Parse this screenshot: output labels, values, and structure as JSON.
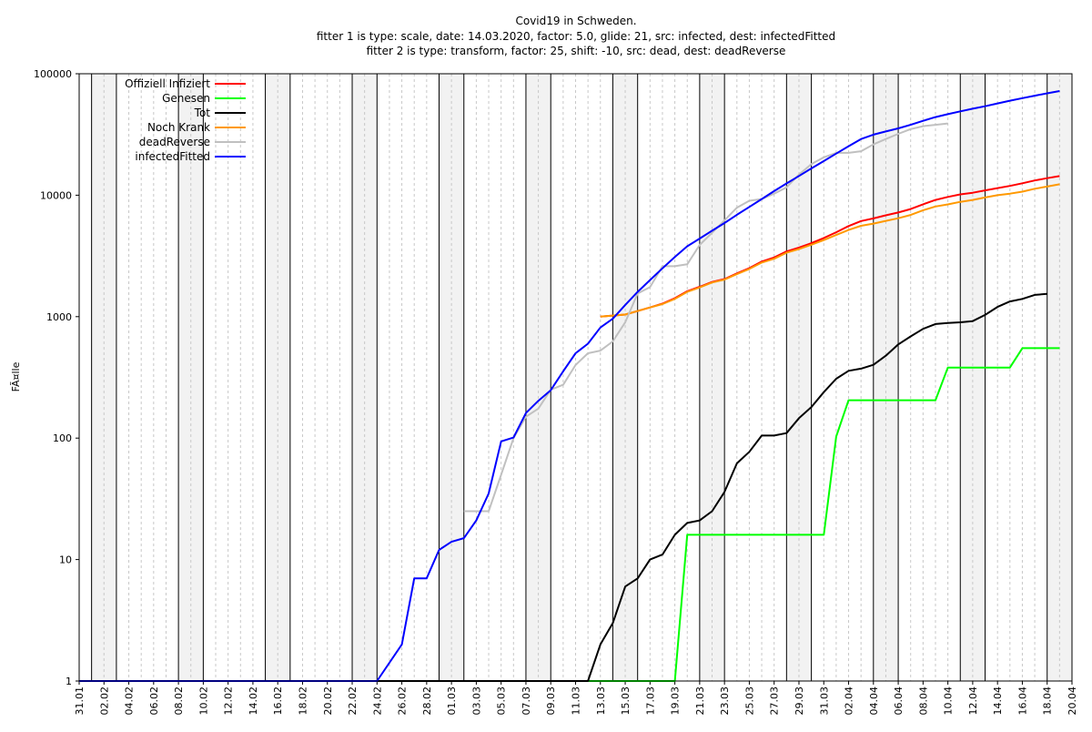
{
  "chart_data": {
    "type": "line",
    "title": "Covid19 in Schweden.",
    "subtitle_lines": [
      "fitter 1 is type: scale, date: 14.03.2020, factor: 5.0, glide: 21, src: infected, dest: infectedFitted",
      "fitter 2 is type: transform, factor: 25, shift: -10, src: dead, dest: deadReverse"
    ],
    "xlabel": "",
    "ylabel": "FÃ¤lle",
    "y_scale": "log",
    "ylim": [
      1,
      100000
    ],
    "y_ticks": [
      1,
      10,
      100,
      1000,
      10000,
      100000
    ],
    "x_range": [
      "2020-01-31",
      "2020-04-20"
    ],
    "x_tick_labels": [
      "31.01",
      "02.02",
      "04.02",
      "06.02",
      "08.02",
      "10.02",
      "12.02",
      "14.02",
      "16.02",
      "18.02",
      "20.02",
      "22.02",
      "24.02",
      "26.02",
      "28.02",
      "01.03",
      "03.03",
      "05.03",
      "07.03",
      "09.03",
      "11.03",
      "13.03",
      "15.03",
      "17.03",
      "19.03",
      "21.03",
      "23.03",
      "25.03",
      "27.03",
      "29.03",
      "31.03",
      "02.04",
      "04.04",
      "06.04",
      "08.04",
      "10.04",
      "12.04",
      "14.04",
      "16.04",
      "18.04",
      "20.04"
    ],
    "weekend_shading": true,
    "grid": "dashed vertical",
    "legend_position": "top-left",
    "series": [
      {
        "name": "Offiziell Infiziert",
        "color": "#ff0000",
        "points": [
          [
            "2020-03-13",
            1000
          ],
          [
            "2020-03-15",
            1040
          ],
          [
            "2020-03-17",
            1190
          ],
          [
            "2020-03-18",
            1280
          ],
          [
            "2020-03-19",
            1420
          ],
          [
            "2020-03-20",
            1620
          ],
          [
            "2020-03-21",
            1760
          ],
          [
            "2020-03-22",
            1930
          ],
          [
            "2020-03-23",
            2040
          ],
          [
            "2020-03-24",
            2270
          ],
          [
            "2020-03-25",
            2510
          ],
          [
            "2020-03-26",
            2840
          ],
          [
            "2020-03-27",
            3070
          ],
          [
            "2020-03-28",
            3440
          ],
          [
            "2020-03-29",
            3700
          ],
          [
            "2020-03-30",
            4030
          ],
          [
            "2020-03-31",
            4440
          ],
          [
            "2020-04-01",
            4950
          ],
          [
            "2020-04-02",
            5570
          ],
          [
            "2020-04-03",
            6130
          ],
          [
            "2020-04-04",
            6440
          ],
          [
            "2020-04-05",
            6830
          ],
          [
            "2020-04-06",
            7210
          ],
          [
            "2020-04-07",
            7690
          ],
          [
            "2020-04-08",
            8420
          ],
          [
            "2020-04-09",
            9140
          ],
          [
            "2020-04-10",
            9680
          ],
          [
            "2020-04-11",
            10150
          ],
          [
            "2020-04-12",
            10480
          ],
          [
            "2020-04-13",
            10950
          ],
          [
            "2020-04-14",
            11440
          ],
          [
            "2020-04-15",
            11930
          ],
          [
            "2020-04-16",
            12540
          ],
          [
            "2020-04-17",
            13220
          ],
          [
            "2020-04-18",
            13820
          ],
          [
            "2020-04-19",
            14380
          ]
        ]
      },
      {
        "name": "Genesen",
        "color": "#00ff00",
        "points": [
          [
            "2020-03-08",
            1
          ],
          [
            "2020-03-19",
            1
          ],
          [
            "2020-03-20",
            16
          ],
          [
            "2020-03-31",
            16
          ],
          [
            "2020-04-01",
            103
          ],
          [
            "2020-04-02",
            205
          ],
          [
            "2020-04-09",
            205
          ],
          [
            "2020-04-10",
            381
          ],
          [
            "2020-04-15",
            381
          ],
          [
            "2020-04-16",
            550
          ],
          [
            "2020-04-19",
            550
          ]
        ]
      },
      {
        "name": "Tot",
        "color": "#000000",
        "points": [
          [
            "2020-01-31",
            1
          ],
          [
            "2020-03-12",
            1
          ],
          [
            "2020-03-13",
            2
          ],
          [
            "2020-03-14",
            3
          ],
          [
            "2020-03-15",
            6
          ],
          [
            "2020-03-16",
            7
          ],
          [
            "2020-03-17",
            10
          ],
          [
            "2020-03-18",
            11
          ],
          [
            "2020-03-19",
            16
          ],
          [
            "2020-03-20",
            20
          ],
          [
            "2020-03-21",
            21
          ],
          [
            "2020-03-22",
            25
          ],
          [
            "2020-03-23",
            36
          ],
          [
            "2020-03-24",
            62
          ],
          [
            "2020-03-25",
            77
          ],
          [
            "2020-03-26",
            105
          ],
          [
            "2020-03-27",
            105
          ],
          [
            "2020-03-28",
            110
          ],
          [
            "2020-03-29",
            146
          ],
          [
            "2020-03-30",
            180
          ],
          [
            "2020-03-31",
            239
          ],
          [
            "2020-04-01",
            308
          ],
          [
            "2020-04-02",
            358
          ],
          [
            "2020-04-03",
            373
          ],
          [
            "2020-04-04",
            401
          ],
          [
            "2020-04-05",
            477
          ],
          [
            "2020-04-06",
            591
          ],
          [
            "2020-04-07",
            687
          ],
          [
            "2020-04-08",
            793
          ],
          [
            "2020-04-09",
            870
          ],
          [
            "2020-04-10",
            887
          ],
          [
            "2020-04-11",
            899
          ],
          [
            "2020-04-12",
            919
          ],
          [
            "2020-04-13",
            1033
          ],
          [
            "2020-04-14",
            1203
          ],
          [
            "2020-04-15",
            1333
          ],
          [
            "2020-04-16",
            1400
          ],
          [
            "2020-04-17",
            1511
          ],
          [
            "2020-04-18",
            1540
          ]
        ]
      },
      {
        "name": "Noch Krank",
        "color": "#ff9900",
        "points": [
          [
            "2020-03-13",
            1000
          ],
          [
            "2020-03-15",
            1040
          ],
          [
            "2020-03-17",
            1190
          ],
          [
            "2020-03-18",
            1270
          ],
          [
            "2020-03-19",
            1400
          ],
          [
            "2020-03-20",
            1600
          ],
          [
            "2020-03-21",
            1740
          ],
          [
            "2020-03-22",
            1910
          ],
          [
            "2020-03-23",
            2020
          ],
          [
            "2020-03-24",
            2240
          ],
          [
            "2020-03-25",
            2470
          ],
          [
            "2020-03-26",
            2790
          ],
          [
            "2020-03-27",
            3000
          ],
          [
            "2020-03-28",
            3360
          ],
          [
            "2020-03-29",
            3600
          ],
          [
            "2020-03-30",
            3910
          ],
          [
            "2020-03-31",
            4270
          ],
          [
            "2020-04-01",
            4700
          ],
          [
            "2020-04-02",
            5170
          ],
          [
            "2020-04-03",
            5600
          ],
          [
            "2020-04-04",
            5840
          ],
          [
            "2020-04-05",
            6150
          ],
          [
            "2020-04-06",
            6460
          ],
          [
            "2020-04-07",
            6880
          ],
          [
            "2020-04-08",
            7520
          ],
          [
            "2020-04-09",
            8070
          ],
          [
            "2020-04-10",
            8400
          ],
          [
            "2020-04-11",
            8820
          ],
          [
            "2020-04-12",
            9140
          ],
          [
            "2020-04-13",
            9580
          ],
          [
            "2020-04-14",
            10000
          ],
          [
            "2020-04-15",
            10300
          ],
          [
            "2020-04-16",
            10700
          ],
          [
            "2020-04-17",
            11310
          ],
          [
            "2020-04-18",
            11780
          ],
          [
            "2020-04-19",
            12300
          ]
        ]
      },
      {
        "name": "deadReverse",
        "color": "#c0c0c0",
        "points": [
          [
            "2020-03-02",
            25
          ],
          [
            "2020-03-04",
            25
          ],
          [
            "2020-03-05",
            50
          ],
          [
            "2020-03-06",
            100
          ],
          [
            "2020-03-07",
            150
          ],
          [
            "2020-03-08",
            175
          ],
          [
            "2020-03-09",
            250
          ],
          [
            "2020-03-10",
            275
          ],
          [
            "2020-03-11",
            400
          ],
          [
            "2020-03-12",
            500
          ],
          [
            "2020-03-13",
            525
          ],
          [
            "2020-03-14",
            625
          ],
          [
            "2020-03-15",
            900
          ],
          [
            "2020-03-16",
            1550
          ],
          [
            "2020-03-17",
            1750
          ],
          [
            "2020-03-18",
            2600
          ],
          [
            "2020-03-19",
            2600
          ],
          [
            "2020-03-20",
            2700
          ],
          [
            "2020-03-21",
            3900
          ],
          [
            "2020-03-22",
            4900
          ],
          [
            "2020-03-23",
            6200
          ],
          [
            "2020-03-24",
            7900
          ],
          [
            "2020-03-25",
            9000
          ],
          [
            "2020-03-26",
            9300
          ],
          [
            "2020-03-27",
            10300
          ],
          [
            "2020-03-28",
            11600
          ],
          [
            "2020-03-29",
            14800
          ],
          [
            "2020-03-30",
            18000
          ],
          [
            "2020-03-31",
            20500
          ],
          [
            "2020-04-01",
            22300
          ],
          [
            "2020-04-02",
            22300
          ],
          [
            "2020-04-03",
            23000
          ],
          [
            "2020-04-04",
            26200
          ],
          [
            "2020-04-05",
            29000
          ],
          [
            "2020-04-06",
            32000
          ],
          [
            "2020-04-07",
            35000
          ],
          [
            "2020-04-08",
            37000
          ],
          [
            "2020-04-09",
            38000
          ],
          [
            "2020-04-10",
            39000
          ]
        ]
      },
      {
        "name": "infectedFitted",
        "color": "#0000ff",
        "points": [
          [
            "2020-01-31",
            1
          ],
          [
            "2020-02-24",
            1
          ],
          [
            "2020-02-26",
            2
          ],
          [
            "2020-02-27",
            7
          ],
          [
            "2020-02-28",
            7
          ],
          [
            "2020-02-29",
            12
          ],
          [
            "2020-03-01",
            14
          ],
          [
            "2020-03-02",
            15
          ],
          [
            "2020-03-03",
            21
          ],
          [
            "2020-03-04",
            35
          ],
          [
            "2020-03-05",
            94
          ],
          [
            "2020-03-06",
            101
          ],
          [
            "2020-03-07",
            161
          ],
          [
            "2020-03-08",
            203
          ],
          [
            "2020-03-09",
            248
          ],
          [
            "2020-03-10",
            355
          ],
          [
            "2020-03-11",
            500
          ],
          [
            "2020-03-12",
            599
          ],
          [
            "2020-03-13",
            814
          ],
          [
            "2020-03-14",
            961
          ],
          [
            "2020-03-15",
            1250
          ],
          [
            "2020-03-16",
            1600
          ],
          [
            "2020-03-17",
            2000
          ],
          [
            "2020-03-18",
            2500
          ],
          [
            "2020-03-19",
            3100
          ],
          [
            "2020-03-20",
            3800
          ],
          [
            "2020-03-21",
            4400
          ],
          [
            "2020-03-22",
            5100
          ],
          [
            "2020-03-23",
            5900
          ],
          [
            "2020-03-24",
            6900
          ],
          [
            "2020-03-25",
            8000
          ],
          [
            "2020-03-26",
            9300
          ],
          [
            "2020-03-27",
            10800
          ],
          [
            "2020-03-28",
            12500
          ],
          [
            "2020-03-29",
            14400
          ],
          [
            "2020-03-30",
            16600
          ],
          [
            "2020-03-31",
            19100
          ],
          [
            "2020-04-01",
            22000
          ],
          [
            "2020-04-02",
            25300
          ],
          [
            "2020-04-03",
            29000
          ],
          [
            "2020-04-04",
            31500
          ],
          [
            "2020-04-05",
            33500
          ],
          [
            "2020-04-06",
            35500
          ],
          [
            "2020-04-07",
            38000
          ],
          [
            "2020-04-08",
            41000
          ],
          [
            "2020-04-09",
            44000
          ],
          [
            "2020-04-10",
            46500
          ],
          [
            "2020-04-11",
            49000
          ],
          [
            "2020-04-12",
            51500
          ],
          [
            "2020-04-13",
            54000
          ],
          [
            "2020-04-14",
            57000
          ],
          [
            "2020-04-15",
            60000
          ],
          [
            "2020-04-16",
            63000
          ],
          [
            "2020-04-17",
            66000
          ],
          [
            "2020-04-18",
            69000
          ],
          [
            "2020-04-19",
            72000
          ]
        ]
      }
    ]
  }
}
